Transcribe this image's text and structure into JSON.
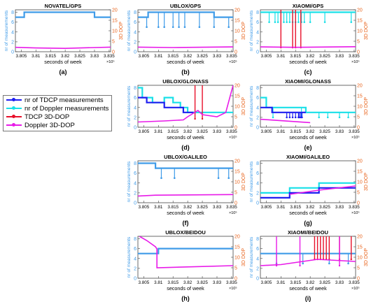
{
  "colors": {
    "tdcp_meas": "#1f1ff0",
    "doppler_meas": "#19e0e8",
    "overlap_meas": "#3f9be8",
    "tdcp_dop": "#e8102a",
    "doppler_dop": "#e81ae8",
    "left_axis": "#3f9be8",
    "right_axis": "#e8621a"
  },
  "legend": [
    {
      "label": "nr of TDCP measurements",
      "color_key": "tdcp_meas",
      "marker": "dot"
    },
    {
      "label": "nr of Doppler measurements",
      "color_key": "doppler_meas",
      "marker": "star"
    },
    {
      "label": "TDCP 3D-DOP",
      "color_key": "tdcp_dop",
      "marker": "dot"
    },
    {
      "label": "Doppler 3D-DOP",
      "color_key": "doppler_dop",
      "marker": "star"
    }
  ],
  "chart_data": [
    {
      "type": "line",
      "panel": "(a)",
      "title": "NOVATEL/GPS",
      "xlabel": "seconds of week",
      "ylabel": "nr of measurements",
      "y2label": "3D DOP",
      "x_multiplier": "×10⁵",
      "xlim": [
        3.803,
        3.8355
      ],
      "xticks": [
        3.805,
        3.81,
        3.815,
        3.82,
        3.825,
        3.83,
        3.835
      ],
      "ylim": [
        0,
        8.5
      ],
      "yticks": [
        0,
        2,
        4,
        6,
        8
      ],
      "y2lim": [
        0,
        20
      ],
      "y2ticks": [
        0,
        5,
        10,
        15,
        20
      ],
      "series": [
        {
          "name": "nr of TDCP measurements",
          "axis": "left",
          "color_key": "overlap_meas",
          "x": [
            3.803,
            3.806,
            3.806,
            3.83,
            3.83,
            3.8355
          ],
          "y": [
            7,
            7,
            8,
            8,
            7,
            7
          ]
        },
        {
          "name": "Doppler 3D-DOP",
          "axis": "right",
          "color_key": "doppler_dop",
          "x": [
            3.803,
            3.81,
            3.82,
            3.8355
          ],
          "y": [
            2.1,
            1.8,
            1.6,
            2.2
          ]
        }
      ]
    },
    {
      "type": "line",
      "panel": "(b)",
      "title": "UBLOX/GPS",
      "xlabel": "seconds of week",
      "ylabel": "nr of measurements",
      "y2label": "3D DOP",
      "x_multiplier": "×10⁵",
      "xlim": [
        3.803,
        3.8355
      ],
      "xticks": [
        3.805,
        3.81,
        3.815,
        3.82,
        3.825,
        3.83,
        3.835
      ],
      "ylim": [
        0,
        8.5
      ],
      "yticks": [
        0,
        2,
        4,
        6,
        8
      ],
      "y2lim": [
        0,
        20
      ],
      "y2ticks": [
        0,
        5,
        10,
        15,
        20
      ],
      "series": [
        {
          "name": "nr of TDCP measurements",
          "axis": "left",
          "color_key": "overlap_meas",
          "x": [
            3.803,
            3.8065,
            3.8065,
            3.829,
            3.829,
            3.8355
          ],
          "y": [
            7,
            7,
            8,
            8,
            7,
            7
          ],
          "drops_x": [
            3.806,
            3.81,
            3.812,
            3.815,
            3.817,
            3.819,
            3.824,
            3.829,
            3.834
          ],
          "drop_to": 5
        },
        {
          "name": "Doppler 3D-DOP",
          "axis": "right",
          "color_key": "doppler_dop",
          "x": [
            3.803,
            3.815,
            3.8355
          ],
          "y": [
            2.2,
            2.0,
            2.3
          ]
        }
      ]
    },
    {
      "type": "line",
      "panel": "(c)",
      "title": "XIAOMI/GPS",
      "xlabel": "seconds of week",
      "ylabel": "nr of measurements",
      "y2label": "3D DOP",
      "x_multiplier": "×10⁵",
      "xlim": [
        3.803,
        3.8355
      ],
      "xticks": [
        3.805,
        3.81,
        3.815,
        3.82,
        3.825,
        3.83,
        3.835
      ],
      "ylim": [
        0,
        8.5
      ],
      "yticks": [
        0,
        2,
        4,
        6,
        8
      ],
      "y2lim": [
        0,
        20
      ],
      "y2ticks": [
        0,
        5,
        10,
        15,
        20
      ],
      "series": [
        {
          "name": "nr of Doppler measurements",
          "axis": "left",
          "color_key": "doppler_meas",
          "x": [
            3.803,
            3.8355
          ],
          "y": [
            8,
            8
          ],
          "drops_x": [
            3.806,
            3.808,
            3.809,
            3.811,
            3.812,
            3.813,
            3.814,
            3.815,
            3.816,
            3.817,
            3.818,
            3.82,
            3.825,
            3.834
          ],
          "drop_to": 6
        },
        {
          "name": "TDCP 3D-DOP",
          "axis": "right",
          "color_key": "tdcp_dop",
          "spikes_x": [
            3.81,
            3.814,
            3.815,
            3.8168
          ],
          "spike_base": 2,
          "spike_top": 20
        },
        {
          "name": "Doppler 3D-DOP",
          "axis": "right",
          "color_key": "doppler_dop",
          "x": [
            3.803,
            3.815,
            3.8355
          ],
          "y": [
            2.3,
            2.1,
            2.4
          ]
        }
      ]
    },
    {
      "type": "line",
      "panel": "(d)",
      "title": "UBLOX/GLONASS",
      "xlabel": "seconds of week",
      "ylabel": "nr of measurements",
      "y2label": "3D DOP",
      "x_multiplier": "×10⁵",
      "xlim": [
        3.803,
        3.8355
      ],
      "xticks": [
        3.805,
        3.81,
        3.815,
        3.82,
        3.825,
        3.83,
        3.835
      ],
      "ylim": [
        0,
        8.5
      ],
      "yticks": [
        0,
        2,
        4,
        6,
        8
      ],
      "y2lim": [
        0,
        20
      ],
      "y2ticks": [
        0,
        5,
        10,
        15,
        20
      ],
      "series": [
        {
          "name": "nr of Doppler measurements",
          "axis": "left",
          "color_key": "doppler_meas",
          "x": [
            3.803,
            3.8045,
            3.8045,
            3.808,
            3.808,
            3.812,
            3.812,
            3.815,
            3.815,
            3.8175,
            3.8175,
            3.82,
            3.82,
            3.8355
          ],
          "y": [
            8,
            8,
            6,
            6,
            5,
            5,
            6,
            6,
            5,
            5,
            4,
            4,
            3,
            3
          ]
        },
        {
          "name": "nr of TDCP measurements",
          "axis": "left",
          "color_key": "tdcp_meas",
          "x": [
            3.803,
            3.806,
            3.806,
            3.812,
            3.812,
            3.8185,
            3.8185,
            3.822
          ],
          "y": [
            6,
            6,
            5,
            5,
            4,
            4,
            3,
            3
          ]
        },
        {
          "name": "TDCP 3D-DOP",
          "axis": "right",
          "color_key": "tdcp_dop",
          "spikes_x": [
            3.8225,
            3.825
          ],
          "spike_base": 4,
          "spike_top": 20
        },
        {
          "name": "Doppler 3D-DOP",
          "axis": "right",
          "color_key": "doppler_dop",
          "x": [
            3.803,
            3.812,
            3.8185,
            3.82,
            3.8235,
            3.825,
            3.83,
            3.833,
            3.8355
          ],
          "y": [
            2.5,
            3.0,
            3.5,
            5,
            8,
            6,
            5,
            7,
            20
          ]
        }
      ]
    },
    {
      "type": "line",
      "panel": "(e)",
      "title": "XIAOMI/GLONASS",
      "xlabel": "seconds of week",
      "ylabel": "nr of measurements",
      "y2label": "3D DOP",
      "x_multiplier": "×10⁵",
      "xlim": [
        3.803,
        3.8355
      ],
      "xticks": [
        3.805,
        3.81,
        3.815,
        3.82,
        3.825,
        3.83,
        3.835
      ],
      "ylim": [
        0,
        8.5
      ],
      "yticks": [
        0,
        2,
        4,
        6,
        8
      ],
      "y2lim": [
        0,
        20
      ],
      "y2ticks": [
        0,
        5,
        10,
        15,
        20
      ],
      "series": [
        {
          "name": "nr of Doppler measurements",
          "axis": "left",
          "color_key": "doppler_meas",
          "x": [
            3.803,
            3.805,
            3.805,
            3.8185,
            3.8185,
            3.8355
          ],
          "y": [
            6,
            6,
            4,
            4,
            3,
            3
          ],
          "drops_x": [
            3.8073,
            3.817,
            3.823,
            3.826,
            3.83,
            3.833
          ],
          "drop_to": 2
        },
        {
          "name": "nr of TDCP measurements",
          "axis": "left",
          "color_key": "tdcp_meas",
          "x": [
            3.803,
            3.807,
            3.807,
            3.8185
          ],
          "y": [
            4,
            4,
            3,
            3
          ],
          "drops_x": [
            3.812,
            3.813,
            3.814,
            3.815,
            3.816,
            3.8163,
            3.8168,
            3.8172
          ],
          "drop_to": 2
        },
        {
          "name": "Doppler 3D-DOP",
          "axis": "right",
          "color_key": "doppler_dop",
          "x": [
            3.803,
            3.82
          ],
          "y": [
            3.8,
            2.2
          ]
        }
      ]
    },
    {
      "type": "line",
      "panel": "(f)",
      "title": "UBLOX/GALILEO",
      "xlabel": "seconds of week",
      "ylabel": "nr of measurements",
      "y2label": "3D DOP",
      "x_multiplier": "×10⁵",
      "xlim": [
        3.803,
        3.8355
      ],
      "xticks": [
        3.805,
        3.81,
        3.815,
        3.82,
        3.825,
        3.83,
        3.835
      ],
      "ylim": [
        0,
        8.5
      ],
      "yticks": [
        0,
        2,
        4,
        6,
        8
      ],
      "y2lim": [
        0,
        20
      ],
      "y2ticks": [
        0,
        5,
        10,
        15,
        20
      ],
      "series": [
        {
          "name": "nr of TDCP measurements",
          "axis": "left",
          "color_key": "overlap_meas",
          "x": [
            3.803,
            3.809,
            3.809,
            3.8355
          ],
          "y": [
            8,
            8,
            7,
            7
          ],
          "drops_x": [
            3.811,
            3.8155,
            3.8305,
            3.834
          ],
          "drop_to": 5
        },
        {
          "name": "Doppler 3D-DOP",
          "axis": "right",
          "color_key": "doppler_dop",
          "x": [
            3.803,
            3.809,
            3.8355
          ],
          "y": [
            3.2,
            3.6,
            3.9
          ]
        }
      ]
    },
    {
      "type": "line",
      "panel": "(g)",
      "title": "XIAOMI/GALILEO",
      "xlabel": "seconds of week",
      "ylabel": "nr of measurements",
      "y2label": "3D DOP",
      "x_multiplier": "×10⁵",
      "xlim": [
        3.803,
        3.8355
      ],
      "xticks": [
        3.805,
        3.81,
        3.815,
        3.82,
        3.825,
        3.83,
        3.835
      ],
      "ylim": [
        0,
        8.5
      ],
      "yticks": [
        0,
        2,
        4,
        6,
        8
      ],
      "y2lim": [
        0,
        20
      ],
      "y2ticks": [
        0,
        5,
        10,
        15,
        20
      ],
      "series": [
        {
          "name": "nr of Doppler measurements",
          "axis": "left",
          "color_key": "doppler_meas",
          "x": [
            3.803,
            3.813,
            3.813,
            3.823,
            3.823,
            3.8355
          ],
          "y": [
            2,
            2,
            3,
            3,
            4,
            4
          ]
        },
        {
          "name": "nr of TDCP measurements",
          "axis": "left",
          "color_key": "tdcp_meas",
          "x": [
            3.803,
            3.813,
            3.813,
            3.823,
            3.823,
            3.8355
          ],
          "y": [
            1,
            1,
            2,
            2,
            3,
            3
          ]
        },
        {
          "name": "Doppler 3D-DOP",
          "axis": "right",
          "color_key": "doppler_dop",
          "x": [
            3.813,
            3.823,
            3.8355
          ],
          "y": [
            4,
            6,
            8
          ]
        }
      ]
    },
    {
      "type": "line",
      "panel": "(h)",
      "title": "UBLOX/BEIDOU",
      "xlabel": "seconds of week",
      "ylabel": "nr of measurements",
      "y2label": "3D DOP",
      "x_multiplier": "×10⁵",
      "xlim": [
        3.803,
        3.8355
      ],
      "xticks": [
        3.805,
        3.81,
        3.815,
        3.82,
        3.825,
        3.83,
        3.835
      ],
      "ylim": [
        0,
        8.5
      ],
      "yticks": [
        0,
        2,
        4,
        6,
        8
      ],
      "y2lim": [
        0,
        20
      ],
      "y2ticks": [
        0,
        5,
        10,
        15,
        20
      ],
      "series": [
        {
          "name": "nr of TDCP measurements",
          "axis": "left",
          "color_key": "overlap_meas",
          "x": [
            3.803,
            3.81,
            3.81,
            3.8355
          ],
          "y": [
            5,
            5,
            6,
            6
          ]
        },
        {
          "name": "Doppler 3D-DOP",
          "axis": "right",
          "color_key": "doppler_dop",
          "x": [
            3.8035,
            3.806,
            3.809,
            3.8095,
            3.8095,
            3.8355
          ],
          "y": [
            20,
            18,
            15,
            14,
            5,
            6
          ]
        }
      ]
    },
    {
      "type": "line",
      "panel": "(i)",
      "title": "XIAOMI/BEIDOU",
      "xlabel": "seconds of week",
      "ylabel": "nr of measurements",
      "y2label": "3D DOP",
      "x_multiplier": "×10⁵",
      "xlim": [
        3.803,
        3.8355
      ],
      "xticks": [
        3.805,
        3.81,
        3.815,
        3.82,
        3.825,
        3.83,
        3.835
      ],
      "ylim": [
        0,
        8.5
      ],
      "yticks": [
        0,
        2,
        4,
        6,
        8
      ],
      "y2lim": [
        0,
        20
      ],
      "y2ticks": [
        0,
        5,
        10,
        15,
        20
      ],
      "series": [
        {
          "name": "nr of TDCP measurements",
          "axis": "left",
          "color_key": "overlap_meas",
          "x": [
            3.803,
            3.8355
          ],
          "y": [
            5,
            5
          ],
          "drops_x": [
            3.8085,
            3.8175,
            3.8265,
            3.833
          ],
          "drop_to": 3
        },
        {
          "name": "TDCP 3D-DOP",
          "axis": "right",
          "color_key": "tdcp_dop",
          "spikes_x": [
            3.8215,
            3.8225,
            3.8235,
            3.8245,
            3.8255,
            3.8265,
            3.83,
            3.834
          ],
          "spike_base": 9,
          "spike_top": 20
        },
        {
          "name": "Doppler 3D-DOP",
          "axis": "right",
          "color_key": "doppler_dop",
          "x": [
            3.803,
            3.81,
            3.815,
            3.82,
            3.8225,
            3.8355
          ],
          "y": [
            6,
            6.5,
            7.5,
            8.5,
            9,
            8
          ],
          "spikes_x": [
            3.8085,
            3.8165,
            3.83
          ],
          "spike_base": 6,
          "spike_top": 20
        }
      ]
    }
  ]
}
